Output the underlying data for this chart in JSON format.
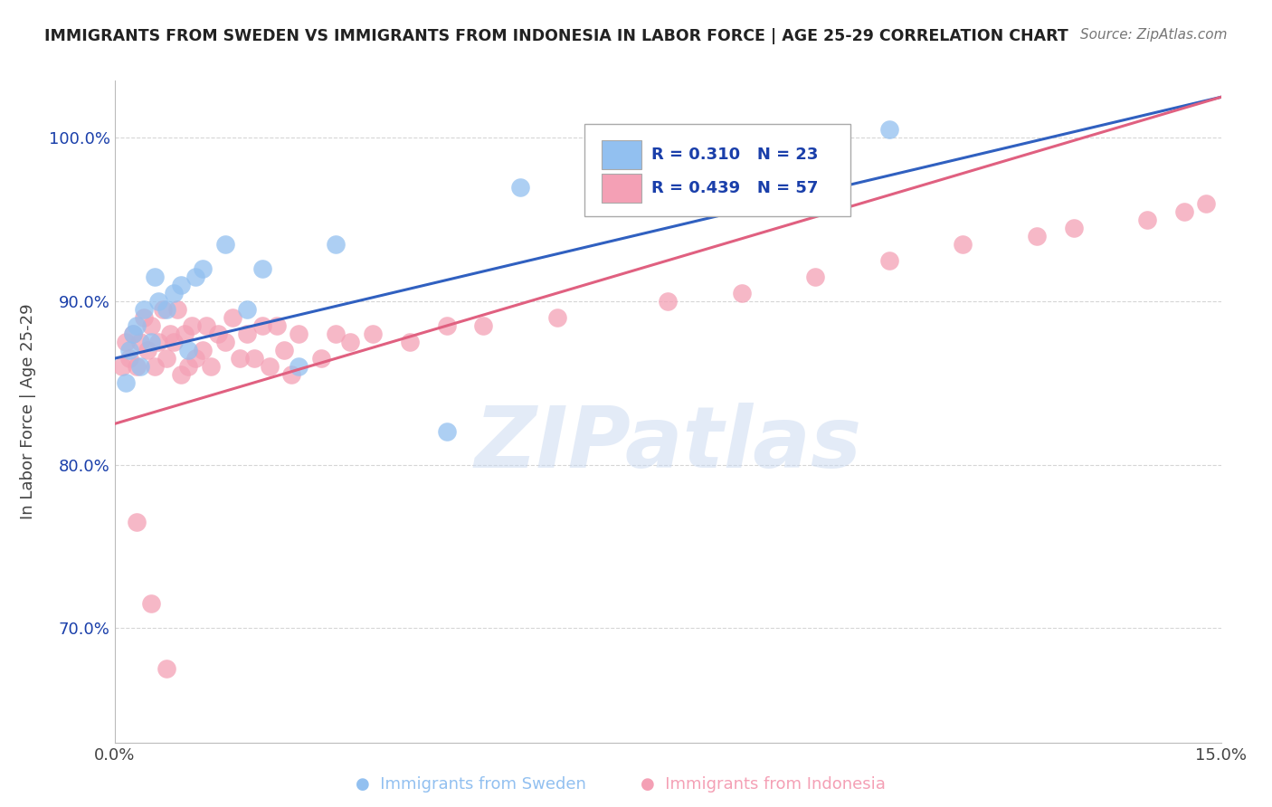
{
  "title": "IMMIGRANTS FROM SWEDEN VS IMMIGRANTS FROM INDONESIA IN LABOR FORCE | AGE 25-29 CORRELATION CHART",
  "source_text": "Source: ZipAtlas.com",
  "ylabel": "In Labor Force | Age 25-29",
  "xlim": [
    0.0,
    15.0
  ],
  "ylim": [
    63.0,
    103.5
  ],
  "x_ticks": [
    0.0,
    15.0
  ],
  "x_tick_labels": [
    "0.0%",
    "15.0%"
  ],
  "y_ticks": [
    70.0,
    80.0,
    90.0,
    100.0
  ],
  "y_tick_labels": [
    "70.0%",
    "80.0%",
    "90.0%",
    "100.0%"
  ],
  "sweden_color": "#92C0F0",
  "indonesia_color": "#F4A0B5",
  "sweden_R": 0.31,
  "sweden_N": 23,
  "indonesia_R": 0.439,
  "indonesia_N": 57,
  "legend_color": "#1a3faa",
  "watermark_text": "ZIPatlas",
  "background_color": "#ffffff",
  "grid_color": "#cccccc",
  "sweden_line_color": "#3060C0",
  "indonesia_line_color": "#E06080",
  "sweden_scatter_x": [
    0.15,
    0.2,
    0.25,
    0.3,
    0.35,
    0.4,
    0.5,
    0.55,
    0.6,
    0.7,
    0.8,
    0.9,
    1.0,
    1.1,
    1.2,
    1.5,
    1.8,
    2.0,
    2.5,
    3.0,
    4.5,
    5.5,
    10.5
  ],
  "sweden_scatter_y": [
    85.0,
    87.0,
    88.0,
    88.5,
    86.0,
    89.5,
    87.5,
    91.5,
    90.0,
    89.5,
    90.5,
    91.0,
    87.0,
    91.5,
    92.0,
    93.5,
    89.5,
    92.0,
    86.0,
    93.5,
    82.0,
    97.0,
    100.5
  ],
  "indonesia_scatter_x": [
    0.1,
    0.15,
    0.2,
    0.25,
    0.3,
    0.35,
    0.4,
    0.45,
    0.5,
    0.55,
    0.6,
    0.65,
    0.7,
    0.75,
    0.8,
    0.85,
    0.9,
    0.95,
    1.0,
    1.05,
    1.1,
    1.2,
    1.25,
    1.3,
    1.4,
    1.5,
    1.6,
    1.7,
    1.8,
    1.9,
    2.0,
    2.1,
    2.2,
    2.3,
    2.4,
    2.5,
    2.8,
    3.0,
    3.2,
    3.5,
    4.0,
    4.5,
    5.0,
    6.0,
    7.5,
    8.5,
    9.5,
    10.5,
    11.5,
    12.5,
    13.0,
    14.0,
    14.5,
    14.8,
    0.3,
    0.5,
    0.7
  ],
  "indonesia_scatter_y": [
    86.0,
    87.5,
    86.5,
    88.0,
    86.0,
    87.5,
    89.0,
    87.0,
    88.5,
    86.0,
    87.5,
    89.5,
    86.5,
    88.0,
    87.5,
    89.5,
    85.5,
    88.0,
    86.0,
    88.5,
    86.5,
    87.0,
    88.5,
    86.0,
    88.0,
    87.5,
    89.0,
    86.5,
    88.0,
    86.5,
    88.5,
    86.0,
    88.5,
    87.0,
    85.5,
    88.0,
    86.5,
    88.0,
    87.5,
    88.0,
    87.5,
    88.5,
    88.5,
    89.0,
    90.0,
    90.5,
    91.5,
    92.5,
    93.5,
    94.0,
    94.5,
    95.0,
    95.5,
    96.0,
    76.5,
    71.5,
    67.5
  ],
  "sweden_line_x0": 0.0,
  "sweden_line_y0": 86.5,
  "sweden_line_x1": 15.0,
  "sweden_line_y1": 102.5,
  "indonesia_line_x0": 0.0,
  "indonesia_line_y0": 82.5,
  "indonesia_line_x1": 15.0,
  "indonesia_line_y1": 102.5
}
